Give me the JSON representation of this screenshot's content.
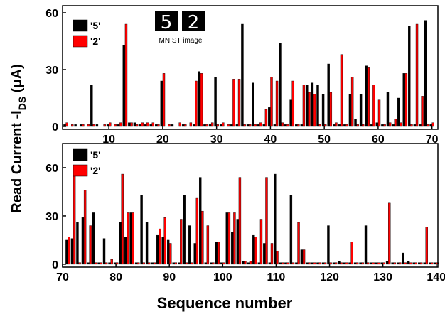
{
  "chart_data": [
    {
      "type": "bar",
      "inset": {
        "digits": [
          "5",
          "2"
        ],
        "caption": "MNIST image"
      },
      "x": [
        1,
        2,
        3,
        4,
        5,
        6,
        7,
        8,
        9,
        10,
        11,
        12,
        13,
        14,
        15,
        16,
        17,
        18,
        19,
        20,
        21,
        22,
        23,
        24,
        25,
        26,
        27,
        28,
        29,
        30,
        31,
        32,
        33,
        34,
        35,
        36,
        37,
        38,
        39,
        40,
        41,
        42,
        43,
        44,
        45,
        46,
        47,
        48,
        49,
        50,
        51,
        52,
        53,
        54,
        55,
        56,
        57,
        58,
        59,
        60,
        61,
        62,
        63,
        64,
        65,
        66,
        67,
        68,
        69,
        70
      ],
      "series": [
        {
          "name": "'5'",
          "color": "#000000",
          "values": [
            0,
            1,
            0,
            1,
            1,
            0,
            22,
            1,
            0,
            1,
            0,
            1,
            43,
            2,
            2,
            1,
            1,
            1,
            1,
            24,
            0,
            1,
            0,
            1,
            0,
            1,
            29,
            1,
            1,
            26,
            1,
            0,
            1,
            1,
            54,
            1,
            23,
            1,
            1,
            10,
            1,
            44,
            1,
            14,
            1,
            1,
            22,
            23,
            22,
            17,
            33,
            1,
            1,
            1,
            17,
            4,
            17,
            32,
            1,
            2,
            1,
            18,
            1,
            15,
            28,
            53,
            1,
            1,
            56,
            1
          ]
        },
        {
          "name": "'2'",
          "color": "#ff0000",
          "values": [
            0,
            2,
            1,
            0,
            1,
            1,
            1,
            0,
            1,
            2,
            1,
            2,
            54,
            2,
            1,
            2,
            2,
            2,
            1,
            28,
            1,
            0,
            2,
            1,
            2,
            24,
            28,
            1,
            2,
            1,
            2,
            1,
            25,
            25,
            1,
            1,
            1,
            2,
            9,
            26,
            24,
            2,
            1,
            24,
            1,
            22,
            18,
            17,
            1,
            1,
            18,
            2,
            38,
            1,
            26,
            1,
            1,
            31,
            22,
            14,
            1,
            2,
            4,
            2,
            28,
            1,
            54,
            16,
            1,
            2
          ]
        }
      ],
      "xlim": [
        1.4,
        71.1
      ],
      "xticks": [
        10,
        20,
        30,
        40,
        50,
        60,
        70
      ],
      "ylim": [
        -1.5,
        63.75
      ],
      "yticks": [
        0,
        30,
        60
      ]
    },
    {
      "type": "bar",
      "x": [
        71,
        72,
        73,
        74,
        75,
        76,
        77,
        78,
        79,
        80,
        81,
        82,
        83,
        84,
        85,
        86,
        87,
        88,
        89,
        90,
        91,
        92,
        93,
        94,
        95,
        96,
        97,
        98,
        99,
        100,
        101,
        102,
        103,
        104,
        105,
        106,
        107,
        108,
        109,
        110,
        111,
        112,
        113,
        114,
        115,
        116,
        117,
        118,
        119,
        120,
        121,
        122,
        123,
        124,
        125,
        126,
        127,
        128,
        129,
        130,
        131,
        132,
        133,
        134,
        135,
        136,
        137,
        138,
        139,
        140
      ],
      "series": [
        {
          "name": "'5'",
          "color": "#000000",
          "values": [
            15,
            16,
            26,
            29,
            1,
            32,
            1,
            16,
            1,
            1,
            26,
            17,
            32,
            1,
            43,
            26,
            1,
            18,
            17,
            15,
            1,
            1,
            43,
            24,
            13,
            54,
            1,
            1,
            14,
            1,
            32,
            20,
            28,
            2,
            1,
            18,
            1,
            13,
            1,
            56,
            1,
            1,
            43,
            1,
            9,
            1,
            1,
            1,
            1,
            24,
            1,
            2,
            1,
            1,
            1,
            1,
            24,
            1,
            1,
            1,
            2,
            1,
            1,
            7,
            2,
            1,
            1,
            1,
            1,
            1
          ]
        },
        {
          "name": "'2'",
          "color": "#ff0000",
          "values": [
            17,
            56,
            1,
            46,
            24,
            1,
            1,
            1,
            3,
            1,
            56,
            32,
            32,
            1,
            1,
            1,
            1,
            22,
            29,
            13,
            1,
            28,
            1,
            1,
            41,
            33,
            24,
            1,
            14,
            1,
            32,
            32,
            54,
            2,
            2,
            17,
            28,
            54,
            13,
            8,
            1,
            1,
            1,
            26,
            9,
            1,
            1,
            1,
            1,
            1,
            1,
            1,
            1,
            14,
            1,
            1,
            1,
            1,
            1,
            1,
            38,
            1,
            1,
            1,
            1,
            1,
            1,
            23,
            1,
            1
          ]
        }
      ],
      "xlim": [
        70,
        140.3
      ],
      "xticks": [
        70,
        80,
        90,
        100,
        110,
        120,
        130,
        140
      ],
      "ylim": [
        -1.8,
        75
      ],
      "yticks": [
        0,
        30,
        60
      ]
    }
  ],
  "axis_labels": {
    "y": "Read Current -I",
    "y_sub": "DS",
    "y_end": " (μA)",
    "x": "Sequence number"
  }
}
